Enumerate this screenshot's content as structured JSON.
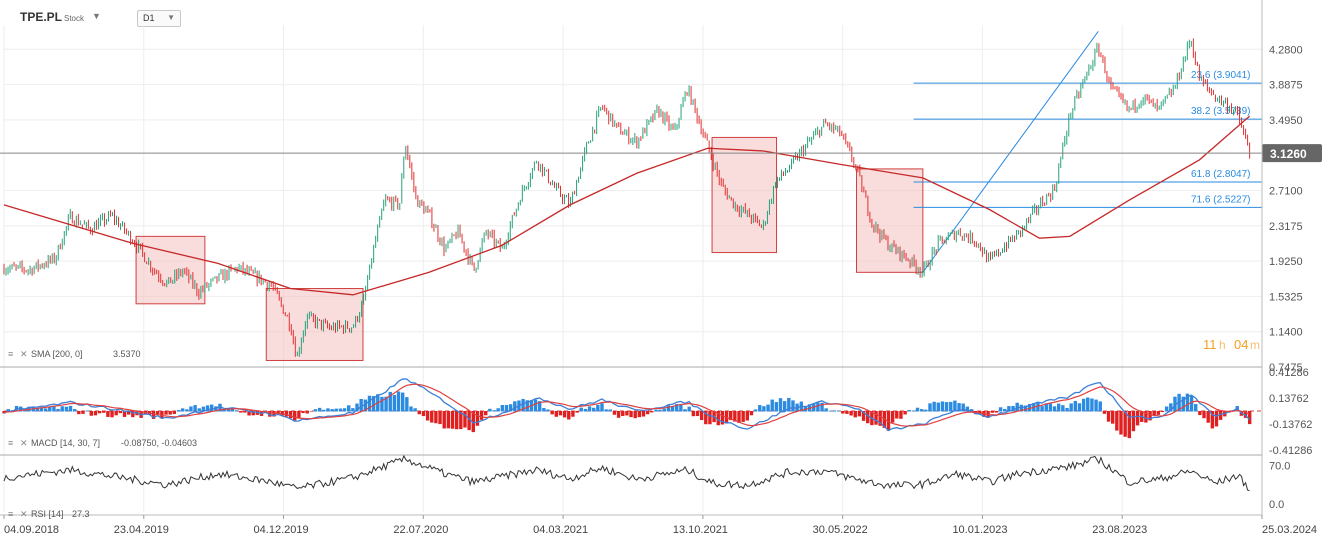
{
  "header": {
    "symbol": "TPE.PL",
    "symbol_type": "Stock",
    "timeframe": "D1",
    "caret": "▼"
  },
  "indicators": {
    "sma_label": "SMA [200, 0]",
    "sma_value": "3.5370",
    "macd_label": "MACD [14, 30, 7]",
    "macd_values": "-0.08750, -0.04603",
    "rsi_label": "RSI [14]",
    "rsi_value": "27.3"
  },
  "countdown": {
    "hours": "11",
    "h": "h",
    "minutes": "04",
    "m": "m"
  },
  "colors": {
    "up_candle": "#26a17b",
    "down_candle": "#e03131",
    "sma": "#c62828",
    "fib": "#2a8be0",
    "box_fill": "#f4c0c0",
    "box_stroke": "#d04040",
    "price_badge": "#666666",
    "macd_pos": "#2a8be0",
    "macd_neg": "#e02020",
    "countdown": "#f0a020"
  },
  "chart_data": [
    {
      "type": "line",
      "title": "",
      "description": "Price candles (D1)",
      "ylim": [
        0.7475,
        4.55
      ],
      "y_ticks": [
        "4.2800",
        "3.8875",
        "3.4950",
        "3.1260",
        "2.7100",
        "2.3175",
        "1.9250",
        "1.5325",
        "1.1400",
        "0.7475"
      ],
      "current_price": "3.1260",
      "x_ticks": [
        "04.09.2018",
        "23.04.2019",
        "04.12.2019",
        "22.07.2020",
        "04.03.2021",
        "13.10.2021",
        "30.05.2022",
        "10.01.2023",
        "23.08.2023",
        "25.03.2024"
      ],
      "x_range": [
        "2018-09-04",
        "2024-03-25"
      ],
      "series": [
        {
          "name": "Close",
          "points": [
            [
              "2018-09-04",
              1.85
            ],
            [
              "2018-10-15",
              1.83
            ],
            [
              "2018-11-25",
              1.95
            ],
            [
              "2018-12-20",
              2.42
            ],
            [
              "2019-01-20",
              2.28
            ],
            [
              "2019-02-25",
              2.43
            ],
            [
              "2019-04-01",
              2.15
            ],
            [
              "2019-05-01",
              1.85
            ],
            [
              "2019-05-25",
              1.67
            ],
            [
              "2019-06-20",
              1.82
            ],
            [
              "2019-07-15",
              1.58
            ],
            [
              "2019-08-15",
              1.73
            ],
            [
              "2019-09-15",
              1.85
            ],
            [
              "2019-10-15",
              1.75
            ],
            [
              "2019-11-10",
              1.65
            ],
            [
              "2019-12-10",
              1.22
            ],
            [
              "2019-12-20",
              0.85
            ],
            [
              "2020-01-05",
              1.3
            ],
            [
              "2020-02-10",
              1.18
            ],
            [
              "2020-03-20",
              1.2
            ],
            [
              "2020-04-05",
              1.45
            ],
            [
              "2020-04-25",
              2.15
            ],
            [
              "2020-05-10",
              2.6
            ],
            [
              "2020-06-03",
              2.55
            ],
            [
              "2020-06-12",
              3.25
            ],
            [
              "2020-06-30",
              2.6
            ],
            [
              "2020-07-20",
              2.45
            ],
            [
              "2020-08-15",
              2.05
            ],
            [
              "2020-09-05",
              2.25
            ],
            [
              "2020-10-01",
              1.82
            ],
            [
              "2020-10-20",
              2.25
            ],
            [
              "2020-11-15",
              2.05
            ],
            [
              "2020-12-15",
              2.65
            ],
            [
              "2021-01-10",
              3.05
            ],
            [
              "2021-02-10",
              2.72
            ],
            [
              "2021-03-05",
              2.55
            ],
            [
              "2021-04-01",
              3.2
            ],
            [
              "2021-04-25",
              3.65
            ],
            [
              "2021-05-20",
              3.4
            ],
            [
              "2021-06-20",
              3.25
            ],
            [
              "2021-07-25",
              3.6
            ],
            [
              "2021-08-20",
              3.35
            ],
            [
              "2021-09-10",
              3.85
            ],
            [
              "2021-10-13",
              3.2
            ],
            [
              "2021-11-05",
              2.75
            ],
            [
              "2021-11-25",
              2.55
            ],
            [
              "2021-12-15",
              2.45
            ],
            [
              "2022-01-10",
              2.3
            ],
            [
              "2022-01-30",
              2.8
            ],
            [
              "2022-02-20",
              2.95
            ],
            [
              "2022-03-20",
              3.2
            ],
            [
              "2022-04-20",
              3.45
            ],
            [
              "2022-05-15",
              3.35
            ],
            [
              "2022-06-10",
              2.95
            ],
            [
              "2022-07-05",
              2.35
            ],
            [
              "2022-08-01",
              2.1
            ],
            [
              "2022-09-01",
              1.95
            ],
            [
              "2022-09-25",
              1.8
            ],
            [
              "2022-10-20",
              2.12
            ],
            [
              "2022-11-20",
              2.25
            ],
            [
              "2022-12-20",
              2.15
            ],
            [
              "2023-01-10",
              1.92
            ],
            [
              "2023-02-05",
              2.1
            ],
            [
              "2023-03-01",
              2.25
            ],
            [
              "2023-04-01",
              2.55
            ],
            [
              "2023-04-25",
              2.72
            ],
            [
              "2023-05-20",
              3.55
            ],
            [
              "2023-06-10",
              3.9
            ],
            [
              "2023-07-05",
              4.3
            ],
            [
              "2023-07-25",
              3.85
            ],
            [
              "2023-08-23",
              3.6
            ],
            [
              "2023-09-15",
              3.75
            ],
            [
              "2023-10-10",
              3.6
            ],
            [
              "2023-11-05",
              3.85
            ],
            [
              "2023-12-01",
              4.4
            ],
            [
              "2023-12-15",
              3.95
            ],
            [
              "2024-01-10",
              3.75
            ],
            [
              "2024-02-01",
              3.65
            ],
            [
              "2024-02-15",
              3.55
            ],
            [
              "2024-03-05",
              3.126
            ]
          ]
        },
        {
          "name": "SMA [200, 0]",
          "points": [
            [
              "2018-09-04",
              2.55
            ],
            [
              "2019-04-01",
              2.12
            ],
            [
              "2019-08-15",
              1.9
            ],
            [
              "2019-12-10",
              1.62
            ],
            [
              "2020-03-20",
              1.55
            ],
            [
              "2020-07-20",
              1.8
            ],
            [
              "2020-11-15",
              2.1
            ],
            [
              "2021-03-05",
              2.55
            ],
            [
              "2021-06-20",
              2.9
            ],
            [
              "2021-10-13",
              3.18
            ],
            [
              "2022-01-10",
              3.15
            ],
            [
              "2022-05-15",
              3.0
            ],
            [
              "2022-09-25",
              2.85
            ],
            [
              "2023-01-10",
              2.5
            ],
            [
              "2023-04-01",
              2.18
            ],
            [
              "2023-05-20",
              2.2
            ],
            [
              "2023-08-23",
              2.6
            ],
            [
              "2023-12-15",
              3.05
            ],
            [
              "2024-03-05",
              3.537
            ]
          ]
        }
      ],
      "fibonacci": [
        {
          "level": "23.6",
          "price": 3.9041,
          "label": "23.6 (3.9041)"
        },
        {
          "level": "38.2",
          "price": 3.5039,
          "label": "38.2 (3.5039)"
        },
        {
          "level": "61.8",
          "price": 2.8047,
          "label": "61.8 (2.8047)"
        },
        {
          "level": "71.6",
          "price": 2.5227,
          "label": "71.6 (2.5227)"
        }
      ],
      "highlight_boxes": [
        {
          "from": "2019-04-05",
          "to": "2019-07-25",
          "high": 2.2,
          "low": 1.45
        },
        {
          "from": "2019-11-01",
          "to": "2020-04-05",
          "high": 1.62,
          "low": 0.82
        },
        {
          "from": "2021-10-20",
          "to": "2022-02-01",
          "high": 3.3,
          "low": 2.02
        },
        {
          "from": "2022-06-10",
          "to": "2022-09-25",
          "high": 2.95,
          "low": 1.8
        }
      ]
    },
    {
      "type": "bar",
      "description": "MACD [14, 30, 7] histogram with MACD and signal lines",
      "ylim": [
        -0.41286,
        0.41286
      ],
      "y_ticks": [
        "0.41286",
        "0.13762",
        "-0.13762",
        "-0.41286"
      ],
      "macd": -0.0875,
      "signal": -0.04603,
      "series": [
        {
          "name": "MACD",
          "points": [
            [
              "2018-09-04",
              -0.01
            ],
            [
              "2018-12-20",
              0.09
            ],
            [
              "2019-03-01",
              0.02
            ],
            [
              "2019-05-25",
              -0.08
            ],
            [
              "2019-08-15",
              0.04
            ],
            [
              "2019-11-10",
              -0.03
            ],
            [
              "2019-12-20",
              -0.1
            ],
            [
              "2020-03-20",
              -0.02
            ],
            [
              "2020-06-12",
              0.35
            ],
            [
              "2020-08-15",
              0.1
            ],
            [
              "2020-10-01",
              -0.12
            ],
            [
              "2020-12-15",
              0.05
            ],
            [
              "2021-01-10",
              0.15
            ],
            [
              "2021-03-05",
              0.02
            ],
            [
              "2021-04-25",
              0.12
            ],
            [
              "2021-06-20",
              0.0
            ],
            [
              "2021-09-10",
              0.1
            ],
            [
              "2021-10-20",
              -0.06
            ],
            [
              "2021-12-15",
              -0.19
            ],
            [
              "2022-02-20",
              0.02
            ],
            [
              "2022-04-20",
              0.1
            ],
            [
              "2022-06-10",
              0.03
            ],
            [
              "2022-08-01",
              -0.2
            ],
            [
              "2022-09-25",
              -0.14
            ],
            [
              "2022-11-20",
              0.02
            ],
            [
              "2023-01-10",
              -0.06
            ],
            [
              "2023-03-01",
              0.04
            ],
            [
              "2023-05-20",
              0.15
            ],
            [
              "2023-07-05",
              0.32
            ],
            [
              "2023-08-23",
              -0.05
            ],
            [
              "2023-10-10",
              -0.08
            ],
            [
              "2023-12-01",
              0.18
            ],
            [
              "2024-01-10",
              -0.06
            ],
            [
              "2024-02-15",
              0.02
            ],
            [
              "2024-03-05",
              -0.0875
            ]
          ]
        }
      ]
    },
    {
      "type": "line",
      "description": "RSI [14]",
      "ylim": [
        0.0,
        100.0
      ],
      "y_ticks": [
        "70.0",
        "0.0"
      ],
      "current": 27.3,
      "series": [
        {
          "name": "RSI",
          "points": [
            [
              "2018-09-04",
              48
            ],
            [
              "2018-12-20",
              62
            ],
            [
              "2019-03-01",
              50
            ],
            [
              "2019-05-25",
              35
            ],
            [
              "2019-08-15",
              55
            ],
            [
              "2019-11-10",
              40
            ],
            [
              "2019-12-20",
              28
            ],
            [
              "2020-03-20",
              48
            ],
            [
              "2020-06-12",
              82
            ],
            [
              "2020-08-15",
              55
            ],
            [
              "2020-10-01",
              40
            ],
            [
              "2021-01-10",
              62
            ],
            [
              "2021-03-05",
              46
            ],
            [
              "2021-04-25",
              66
            ],
            [
              "2021-06-20",
              45
            ],
            [
              "2021-09-10",
              62
            ],
            [
              "2021-10-20",
              38
            ],
            [
              "2021-12-15",
              34
            ],
            [
              "2022-02-20",
              58
            ],
            [
              "2022-04-20",
              60
            ],
            [
              "2022-06-10",
              45
            ],
            [
              "2022-08-01",
              33
            ],
            [
              "2022-09-25",
              36
            ],
            [
              "2022-11-20",
              55
            ],
            [
              "2023-01-10",
              40
            ],
            [
              "2023-03-01",
              56
            ],
            [
              "2023-05-20",
              68
            ],
            [
              "2023-07-05",
              82
            ],
            [
              "2023-08-23",
              40
            ],
            [
              "2023-10-10",
              45
            ],
            [
              "2023-12-01",
              60
            ],
            [
              "2024-01-10",
              38
            ],
            [
              "2024-02-15",
              52
            ],
            [
              "2024-03-05",
              27.3
            ]
          ]
        }
      ]
    }
  ]
}
